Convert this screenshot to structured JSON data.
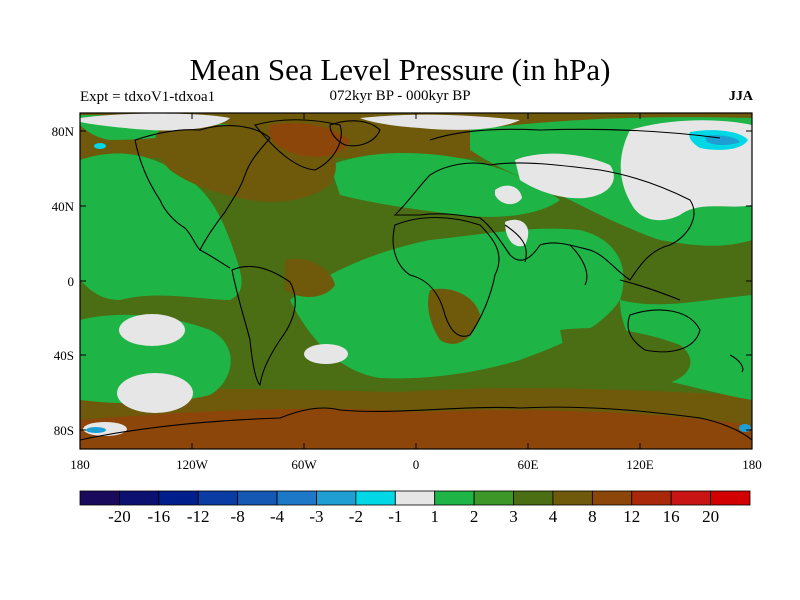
{
  "title": "Mean Sea Level Pressure (in hPa)",
  "left_subtitle": "Expt = tdxoV1-tdxoa1",
  "center_subtitle": "072kyr BP - 000kyr BP",
  "right_subtitle": "JJA",
  "lat_labels": [
    "80N",
    "40N",
    "0",
    "40S",
    "80S"
  ],
  "lon_labels": [
    "180",
    "120W",
    "60W",
    "0",
    "60E",
    "120E",
    "180"
  ],
  "colorbar": {
    "colors": [
      "#1a0a5c",
      "#0c1070",
      "#001e8c",
      "#0a3ca4",
      "#1458b4",
      "#1e78c8",
      "#1e9ed2",
      "#00d8e6",
      "#e6e6e6",
      "#1eb446",
      "#3c9628",
      "#4b6e14",
      "#6e5a0a",
      "#8c460a",
      "#aa280a",
      "#c81414",
      "#d20000"
    ],
    "labels": [
      "-20",
      "-16",
      "-12",
      "-8",
      "-4",
      "-3",
      "-2",
      "-1",
      "1",
      "2",
      "3",
      "4",
      "8",
      "12",
      "16",
      "20"
    ]
  }
}
